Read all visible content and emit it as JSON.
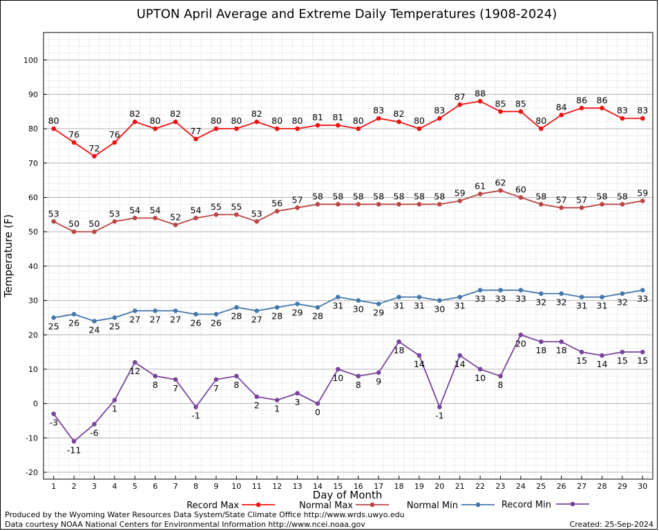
{
  "chart_data": {
    "type": "line",
    "title": "UPTON April Average and Extreme Daily Temperatures (1908-2024)",
    "xlabel": "Day of Month",
    "ylabel": "Temperature (F)",
    "x": [
      1,
      2,
      3,
      4,
      5,
      6,
      7,
      8,
      9,
      10,
      11,
      12,
      13,
      14,
      15,
      16,
      17,
      18,
      19,
      20,
      21,
      22,
      23,
      24,
      25,
      26,
      27,
      28,
      29,
      30
    ],
    "xlim": [
      0.5,
      30.5
    ],
    "ylim": [
      -22,
      108
    ],
    "yticks": [
      -20,
      -10,
      0,
      10,
      20,
      30,
      40,
      50,
      60,
      70,
      80,
      90,
      100
    ],
    "grid": true,
    "legend_position": "bottom",
    "series": [
      {
        "name": "Record Max",
        "color": "#ee1111",
        "labels": "above",
        "values": [
          80,
          76,
          72,
          76,
          82,
          80,
          82,
          77,
          80,
          80,
          82,
          80,
          80,
          81,
          81,
          80,
          83,
          82,
          80,
          83,
          87,
          88,
          85,
          85,
          80,
          84,
          86,
          86,
          83,
          83
        ]
      },
      {
        "name": "Normal Max",
        "color": "#bb4444",
        "labels": "above",
        "values": [
          53,
          50,
          50,
          53,
          54,
          54,
          52,
          54,
          55,
          55,
          53,
          56,
          57,
          58,
          58,
          58,
          58,
          58,
          58,
          58,
          59,
          61,
          62,
          60,
          58,
          57,
          57,
          58,
          58,
          59
        ]
      },
      {
        "name": "Normal Min",
        "color": "#4477aa",
        "labels": "below",
        "values": [
          25,
          26,
          24,
          25,
          27,
          27,
          27,
          26,
          26,
          28,
          27,
          28,
          29,
          28,
          31,
          30,
          29,
          31,
          31,
          30,
          31,
          33,
          33,
          33,
          32,
          32,
          31,
          31,
          32,
          33
        ]
      },
      {
        "name": "Record Min",
        "color": "#774499",
        "labels": "below",
        "values": [
          -3,
          -11,
          -6,
          1,
          12,
          8,
          7,
          -1,
          7,
          8,
          2,
          1,
          3,
          0,
          10,
          8,
          9,
          18,
          14,
          -1,
          14,
          10,
          8,
          20,
          18,
          18,
          15,
          14,
          15,
          15
        ]
      }
    ]
  },
  "footer": {
    "producer": "Produced by the Wyoming Water Resources Data System/State Climate Office http://www.wrds.uwyo.edu",
    "source": "Data courtesy NOAA National Centers for Environmental Information http://www.ncei.noaa.gov",
    "created": "Created:  25-Sep-2024"
  }
}
